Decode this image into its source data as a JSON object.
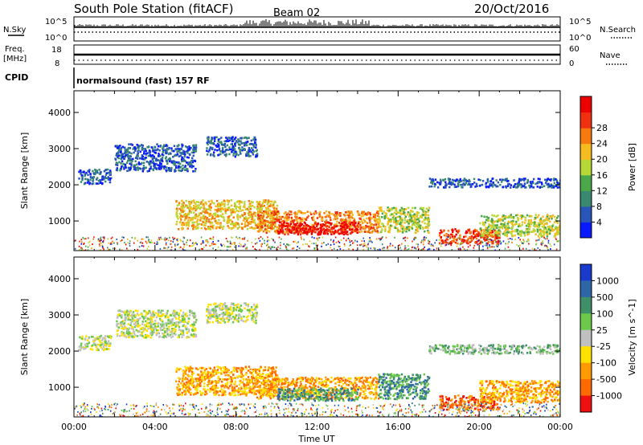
{
  "header": {
    "title": "South Pole Station (fitACF)",
    "beam": "Beam 02",
    "date": "20/Oct/2016"
  },
  "status_panels": {
    "nsky_label": "N.Sky",
    "nsearch_label": "N.Search",
    "nsky_ticks": [
      "10^5",
      "10^0"
    ],
    "nsearch_ticks": [
      "10^5",
      "10^0"
    ],
    "freq_label_1": "Freq.",
    "freq_label_2": "[MHz]",
    "freq_ticks": [
      "18",
      "8"
    ],
    "nave_label": "Nave",
    "nave_ticks": [
      "60",
      "0"
    ],
    "cpid_label": "CPID",
    "cpid_text": "normalsound (fast) 157 RF"
  },
  "chart_data": [
    {
      "type": "heatmap",
      "panel": "power",
      "xlabel": "",
      "ylabel": "Slant Range [km]",
      "x_ticks": [
        "00:00",
        "04:00",
        "08:00",
        "12:00",
        "16:00",
        "20:00",
        "00:00"
      ],
      "y_ticks": [
        1000,
        2000,
        3000,
        4000
      ],
      "xlim_hours": [
        0,
        24
      ],
      "ylim_km": [
        180,
        4600
      ],
      "colorbar": {
        "label": "Power [dB]",
        "ticks": [
          "4",
          "8",
          "12",
          "16",
          "20",
          "24",
          "28"
        ],
        "colors": [
          "#0a1aff",
          "#2a55b8",
          "#3a8870",
          "#4aa84a",
          "#b8d838",
          "#f6bb20",
          "#f67a10",
          "#f03010",
          "#ee0000"
        ]
      },
      "echo_regions": [
        {
          "hours": [
            0.2,
            1.8
          ],
          "range_km": [
            2050,
            2450
          ],
          "level": 1
        },
        {
          "hours": [
            2.0,
            6.0
          ],
          "range_km": [
            2400,
            3150
          ],
          "level": 1
        },
        {
          "hours": [
            6.5,
            9.0
          ],
          "range_km": [
            2800,
            3350
          ],
          "level": 1
        },
        {
          "hours": [
            5.0,
            10.0
          ],
          "range_km": [
            800,
            1600
          ],
          "level": 5
        },
        {
          "hours": [
            9.0,
            15.0
          ],
          "range_km": [
            700,
            1300
          ],
          "level": 6
        },
        {
          "hours": [
            10.0,
            14.0
          ],
          "range_km": [
            650,
            1000
          ],
          "level": 8
        },
        {
          "hours": [
            15.0,
            17.5
          ],
          "range_km": [
            700,
            1400
          ],
          "level": 4
        },
        {
          "hours": [
            17.5,
            24.0
          ],
          "range_km": [
            1950,
            2200
          ],
          "level": 1
        },
        {
          "hours": [
            18.0,
            21.0
          ],
          "range_km": [
            400,
            800
          ],
          "level": 7
        },
        {
          "hours": [
            20.0,
            24.0
          ],
          "range_km": [
            600,
            1200
          ],
          "level": 4
        }
      ]
    },
    {
      "type": "heatmap",
      "panel": "velocity",
      "xlabel": "Time UT",
      "ylabel": "Slant Range [km]",
      "x_ticks": [
        "00:00",
        "04:00",
        "08:00",
        "12:00",
        "16:00",
        "20:00",
        "00:00"
      ],
      "y_ticks": [
        1000,
        2000,
        3000,
        4000
      ],
      "xlim_hours": [
        0,
        24
      ],
      "ylim_km": [
        180,
        4600
      ],
      "colorbar": {
        "label": "Velocity [m s^-1]",
        "ticks": [
          "1000",
          "500",
          "100",
          "25",
          "-25",
          "-100",
          "-500",
          "-1000"
        ],
        "colors": [
          "#1a3acd",
          "#2e66a8",
          "#3f8f68",
          "#6cc84a",
          "#c0c0c0",
          "#ffe100",
          "#ff9a00",
          "#ff6a00",
          "#ee1010"
        ]
      },
      "echo_regions": [
        {
          "hours": [
            0.2,
            1.8
          ],
          "range_km": [
            2050,
            2450
          ],
          "level": 4
        },
        {
          "hours": [
            2.0,
            6.0
          ],
          "range_km": [
            2400,
            3150
          ],
          "level": 4
        },
        {
          "hours": [
            6.5,
            9.0
          ],
          "range_km": [
            2800,
            3350
          ],
          "level": 4
        },
        {
          "hours": [
            5.0,
            10.0
          ],
          "range_km": [
            800,
            1600
          ],
          "level": 6
        },
        {
          "hours": [
            9.0,
            15.0
          ],
          "range_km": [
            700,
            1300
          ],
          "level": 6
        },
        {
          "hours": [
            10.0,
            14.0
          ],
          "range_km": [
            650,
            1000
          ],
          "level": 2
        },
        {
          "hours": [
            15.0,
            17.5
          ],
          "range_km": [
            700,
            1400
          ],
          "level": 2
        },
        {
          "hours": [
            17.5,
            24.0
          ],
          "range_km": [
            1950,
            2200
          ],
          "level": 3
        },
        {
          "hours": [
            18.0,
            21.0
          ],
          "range_km": [
            400,
            800
          ],
          "level": 7
        },
        {
          "hours": [
            20.0,
            24.0
          ],
          "range_km": [
            600,
            1200
          ],
          "level": 6
        }
      ]
    }
  ]
}
